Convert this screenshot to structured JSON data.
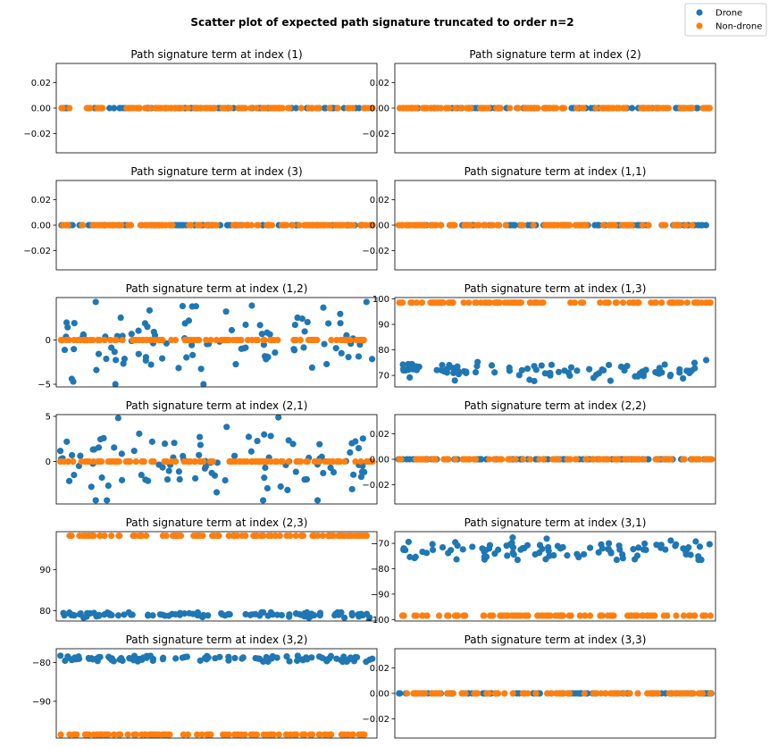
{
  "figure": {
    "title": "Scatter plot of expected path signature truncated to order n=2"
  },
  "legend": {
    "placement": "top-right",
    "entries": [
      {
        "label": "Drone",
        "color": "#1f77b4"
      },
      {
        "label": "Non-drone",
        "color": "#ff7f0e"
      }
    ]
  },
  "colors": {
    "drone": "#1f77b4",
    "non_drone": "#ff7f0e"
  },
  "chart_data": [
    {
      "type": "scatter",
      "title": "Path signature term at index (1)",
      "ylim": [
        -0.035,
        0.035
      ],
      "yticks": [
        0.02,
        0.0,
        -0.02
      ],
      "yticklabels": [
        "0.02",
        "0.00",
        "−0.02"
      ],
      "grid": false,
      "series": [
        {
          "name": "Drone",
          "pattern": "constant",
          "value": 0.0,
          "count": 100
        },
        {
          "name": "Non-drone",
          "pattern": "constant",
          "value": 0.0,
          "count": 100
        }
      ]
    },
    {
      "type": "scatter",
      "title": "Path signature term at index (2)",
      "ylim": [
        -0.035,
        0.035
      ],
      "yticks": [
        0.02,
        0.0,
        -0.02
      ],
      "yticklabels": [
        "0.02",
        "0.00",
        "−0.02"
      ],
      "grid": false,
      "series": [
        {
          "name": "Drone",
          "pattern": "constant",
          "value": 0.0,
          "count": 100
        },
        {
          "name": "Non-drone",
          "pattern": "constant",
          "value": 0.0,
          "count": 100
        }
      ]
    },
    {
      "type": "scatter",
      "title": "Path signature term at index (3)",
      "ylim": [
        -0.035,
        0.035
      ],
      "yticks": [
        0.02,
        0.0,
        -0.02
      ],
      "yticklabels": [
        "0.02",
        "0.00",
        "−0.02"
      ],
      "grid": false,
      "series": [
        {
          "name": "Drone",
          "pattern": "constant",
          "value": 0.0,
          "count": 100
        },
        {
          "name": "Non-drone",
          "pattern": "constant",
          "value": 0.0,
          "count": 100
        }
      ]
    },
    {
      "type": "scatter",
      "title": "Path signature term at index (1,1)",
      "ylim": [
        -0.035,
        0.035
      ],
      "yticks": [
        0.02,
        0.0,
        -0.02
      ],
      "yticklabels": [
        "0.02",
        "0.00",
        "−0.02"
      ],
      "grid": false,
      "series": [
        {
          "name": "Drone",
          "pattern": "constant",
          "value": 0.0,
          "count": 100
        },
        {
          "name": "Non-drone",
          "pattern": "constant",
          "value": 0.0,
          "count": 100
        }
      ]
    },
    {
      "type": "scatter",
      "title": "Path signature term at index (1,2)",
      "ylim": [
        -5.3,
        4.8
      ],
      "yticks": [
        0,
        -5
      ],
      "yticklabels": [
        "0",
        "−5"
      ],
      "grid": false,
      "series": [
        {
          "name": "Drone",
          "pattern": "scatter",
          "center": 0.0,
          "spread": 2.2,
          "min": -5.0,
          "max": 4.3,
          "count": 100
        },
        {
          "name": "Non-drone",
          "pattern": "constant",
          "value": 0.0,
          "count": 100
        }
      ]
    },
    {
      "type": "scatter",
      "title": "Path signature term at index (1,3)",
      "ylim": [
        65.5,
        100.5
      ],
      "yticks": [
        100,
        90,
        80,
        70
      ],
      "yticklabels": [
        "100",
        "90",
        "80",
        "70"
      ],
      "grid": false,
      "series": [
        {
          "name": "Drone",
          "pattern": "band",
          "center": 72,
          "spread": 2.0,
          "min": 67,
          "max": 76,
          "count": 100
        },
        {
          "name": "Non-drone",
          "pattern": "constant",
          "value": 98.5,
          "count": 100
        }
      ]
    },
    {
      "type": "scatter",
      "title": "Path signature term at index (2,1)",
      "ylim": [
        -4.7,
        5.2
      ],
      "yticks": [
        5,
        0
      ],
      "yticklabels": [
        "5",
        "0"
      ],
      "grid": false,
      "series": [
        {
          "name": "Drone",
          "pattern": "scatter",
          "center": 0.0,
          "spread": 2.0,
          "min": -4.3,
          "max": 4.9,
          "count": 100
        },
        {
          "name": "Non-drone",
          "pattern": "constant",
          "value": 0.0,
          "count": 100
        }
      ]
    },
    {
      "type": "scatter",
      "title": "Path signature term at index (2,2)",
      "ylim": [
        -0.035,
        0.035
      ],
      "yticks": [
        0.02,
        0.0,
        -0.02
      ],
      "yticklabels": [
        "0.02",
        "0.00",
        "−0.02"
      ],
      "grid": false,
      "series": [
        {
          "name": "Drone",
          "pattern": "constant",
          "value": 0.0,
          "count": 100
        },
        {
          "name": "Non-drone",
          "pattern": "constant",
          "value": 0.0,
          "count": 100
        }
      ]
    },
    {
      "type": "scatter",
      "title": "Path signature term at index (2,3)",
      "ylim": [
        77.5,
        99.3
      ],
      "yticks": [
        90,
        80
      ],
      "yticklabels": [
        "90",
        "80"
      ],
      "grid": false,
      "series": [
        {
          "name": "Drone",
          "pattern": "band",
          "center": 79,
          "spread": 0.4,
          "min": 78.3,
          "max": 79.6,
          "count": 100
        },
        {
          "name": "Non-drone",
          "pattern": "constant",
          "value": 98.3,
          "count": 100
        }
      ]
    },
    {
      "type": "scatter",
      "title": "Path signature term at index (3,1)",
      "ylim": [
        -100.6,
        -65.4
      ],
      "yticks": [
        -70,
        -80,
        -90,
        -100
      ],
      "yticklabels": [
        "−70",
        "−80",
        "−90",
        "−100"
      ],
      "grid": false,
      "series": [
        {
          "name": "Drone",
          "pattern": "band",
          "center": -72.5,
          "spread": 2.0,
          "min": -76.5,
          "max": -67.5,
          "count": 100
        },
        {
          "name": "Non-drone",
          "pattern": "constant",
          "value": -98.5,
          "count": 100
        }
      ]
    },
    {
      "type": "scatter",
      "title": "Path signature term at index (3,2)",
      "ylim": [
        -99.5,
        -76.4
      ],
      "yticks": [
        -80,
        -90
      ],
      "yticklabels": [
        "−80",
        "−90"
      ],
      "grid": false,
      "series": [
        {
          "name": "Drone",
          "pattern": "band",
          "center": -79,
          "spread": 0.4,
          "min": -79.8,
          "max": -78.2,
          "count": 100
        },
        {
          "name": "Non-drone",
          "pattern": "constant",
          "value": -98.6,
          "count": 100
        }
      ]
    },
    {
      "type": "scatter",
      "title": "Path signature term at index (3,3)",
      "ylim": [
        -0.035,
        0.035
      ],
      "yticks": [
        0.02,
        0.0,
        -0.02
      ],
      "yticklabels": [
        "0.02",
        "0.00",
        "−0.02"
      ],
      "grid": false,
      "series": [
        {
          "name": "Drone",
          "pattern": "constant",
          "value": 0.0,
          "count": 100
        },
        {
          "name": "Non-drone",
          "pattern": "constant",
          "value": 0.0,
          "count": 100
        }
      ]
    }
  ]
}
